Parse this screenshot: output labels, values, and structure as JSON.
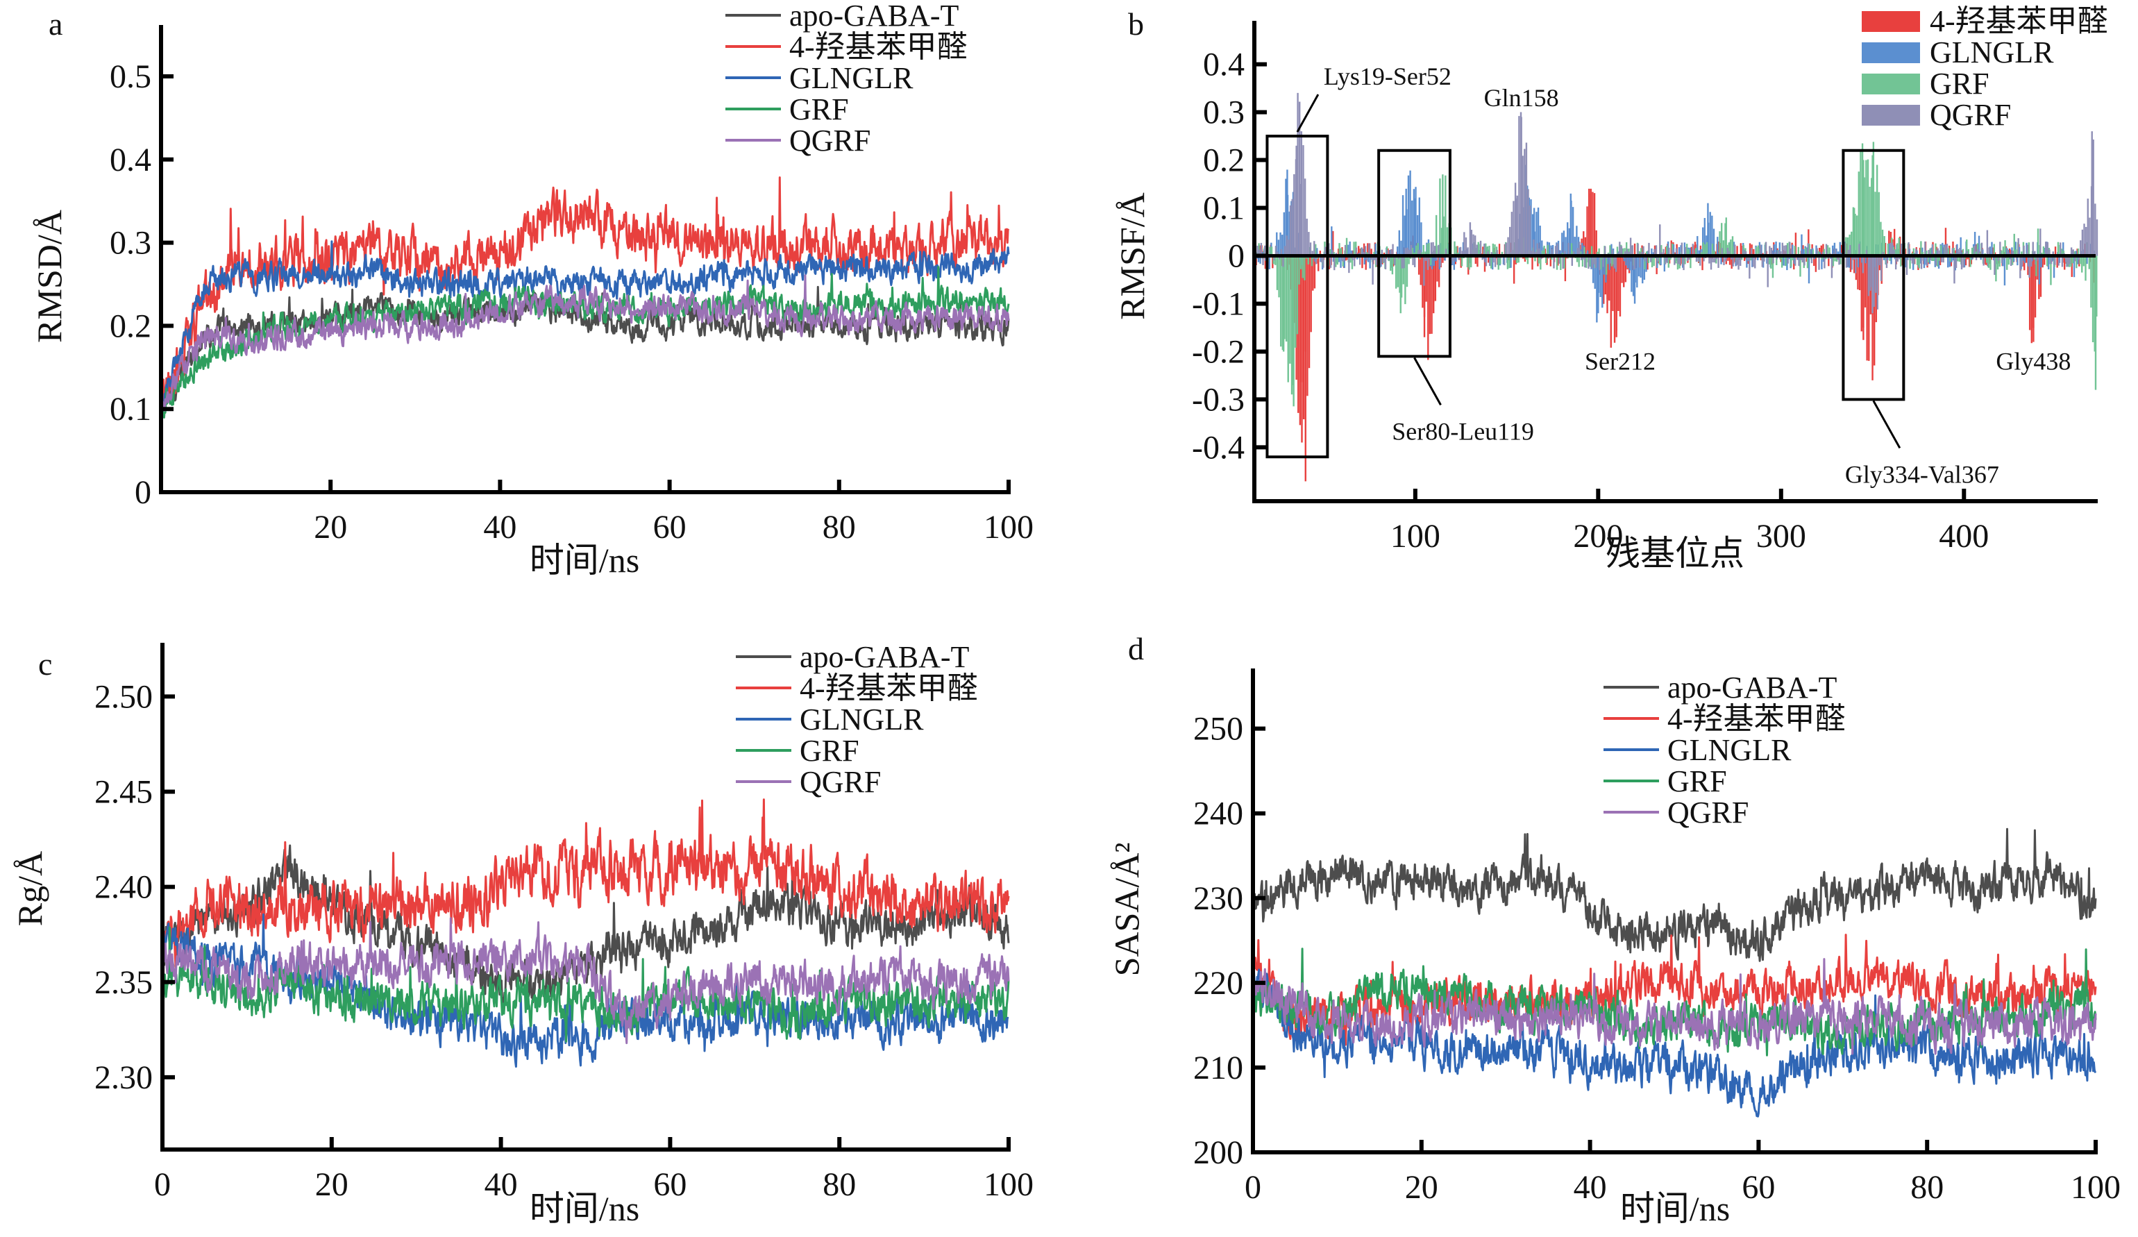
{
  "figure": {
    "panels": [
      "a",
      "b",
      "c",
      "d"
    ]
  },
  "chart_data": [
    {
      "id": "a",
      "type": "line",
      "panel_label": "a",
      "title": "",
      "xlabel": "时间/ns",
      "ylabel": "RMSD/Å",
      "xlim": [
        0,
        100
      ],
      "ylim": [
        0,
        0.52
      ],
      "xticks": [
        20,
        40,
        60,
        80,
        100
      ],
      "yticks": [
        0,
        0.1,
        0.2,
        0.3,
        0.4,
        0.5
      ],
      "ytick_labels": [
        "0",
        "0.1",
        "0.2",
        "0.3",
        "0.4",
        "0.5"
      ],
      "grid": false,
      "legend_position": "top-right",
      "x": [
        0,
        5,
        10,
        15,
        20,
        25,
        30,
        35,
        40,
        45,
        50,
        55,
        60,
        65,
        70,
        75,
        80,
        85,
        90,
        95,
        100
      ],
      "series": [
        {
          "name": "apo-GABA-T",
          "color": "#4d4d4d",
          "noise": 0.012,
          "values": [
            0.1,
            0.19,
            0.2,
            0.2,
            0.21,
            0.22,
            0.22,
            0.21,
            0.22,
            0.22,
            0.21,
            0.2,
            0.2,
            0.21,
            0.2,
            0.2,
            0.2,
            0.2,
            0.2,
            0.2,
            0.2
          ]
        },
        {
          "name": "4-羟基苯甲醛",
          "color": "#e8403e",
          "noise": 0.022,
          "values": [
            0.1,
            0.23,
            0.27,
            0.28,
            0.28,
            0.29,
            0.28,
            0.27,
            0.29,
            0.32,
            0.34,
            0.31,
            0.31,
            0.3,
            0.3,
            0.3,
            0.3,
            0.29,
            0.29,
            0.3,
            0.3
          ]
        },
        {
          "name": "GLNGLR",
          "color": "#2f66b5",
          "noise": 0.012,
          "values": [
            0.1,
            0.25,
            0.26,
            0.26,
            0.26,
            0.27,
            0.25,
            0.25,
            0.25,
            0.26,
            0.25,
            0.25,
            0.25,
            0.26,
            0.26,
            0.27,
            0.27,
            0.27,
            0.27,
            0.27,
            0.28
          ]
        },
        {
          "name": "GRF",
          "color": "#2e9e5e",
          "noise": 0.012,
          "values": [
            0.1,
            0.16,
            0.18,
            0.2,
            0.21,
            0.21,
            0.22,
            0.22,
            0.23,
            0.23,
            0.22,
            0.22,
            0.22,
            0.22,
            0.23,
            0.22,
            0.23,
            0.22,
            0.23,
            0.23,
            0.23
          ]
        },
        {
          "name": "QGRF",
          "color": "#9b72b5",
          "noise": 0.012,
          "values": [
            0.1,
            0.19,
            0.18,
            0.19,
            0.19,
            0.2,
            0.2,
            0.2,
            0.22,
            0.23,
            0.23,
            0.22,
            0.22,
            0.22,
            0.22,
            0.21,
            0.21,
            0.21,
            0.21,
            0.21,
            0.21
          ]
        }
      ]
    },
    {
      "id": "b",
      "type": "bar",
      "panel_label": "b",
      "title": "",
      "xlabel": "残基位点",
      "ylabel": "RMSF/Å",
      "xlim": [
        12,
        472
      ],
      "ylim": [
        -0.44,
        0.44
      ],
      "xticks": [
        100,
        200,
        300,
        400
      ],
      "yticks": [
        -0.4,
        -0.3,
        -0.2,
        -0.1,
        0,
        0.1,
        0.2,
        0.3,
        0.4
      ],
      "ytick_labels": [
        "-0.4",
        "-0.3",
        "-0.2",
        "-0.1",
        "0",
        "0.1",
        "0.2",
        "0.3",
        "0.4"
      ],
      "grid": false,
      "legend_position": "top-right",
      "series": [
        {
          "name": "4-羟基苯甲醛",
          "color": "#e8403e",
          "peaks": [
            [
              38,
              -0.39
            ],
            [
              40,
              -0.2
            ],
            [
              105,
              -0.17
            ],
            [
              110,
              -0.12
            ],
            [
              100,
              0.08
            ],
            [
              196,
              0.14
            ],
            [
              210,
              -0.17
            ],
            [
              205,
              -0.12
            ],
            [
              350,
              -0.26
            ],
            [
              345,
              -0.15
            ],
            [
              438,
              -0.18
            ],
            [
              360,
              0.05
            ]
          ]
        },
        {
          "name": "GLNGLR",
          "color": "#5b8fd0",
          "peaks": [
            [
              30,
              0.18
            ],
            [
              95,
              0.14
            ],
            [
              100,
              0.12
            ],
            [
              160,
              0.16
            ],
            [
              165,
              0.1
            ],
            [
              185,
              0.13
            ],
            [
              200,
              -0.12
            ],
            [
              260,
              0.11
            ],
            [
              220,
              -0.1
            ],
            [
              406,
              0.05
            ]
          ]
        },
        {
          "name": "GRF",
          "color": "#72c495",
          "peaks": [
            [
              28,
              -0.2
            ],
            [
              33,
              -0.27
            ],
            [
              115,
              0.17
            ],
            [
              92,
              -0.12
            ],
            [
              345,
              0.2
            ],
            [
              350,
              0.21
            ],
            [
              340,
              0.1
            ],
            [
              270,
              0.08
            ],
            [
              472,
              -0.28
            ]
          ]
        },
        {
          "name": "QGRF",
          "color": "#8f8fb6",
          "peaks": [
            [
              35,
              0.23
            ],
            [
              37,
              0.15
            ],
            [
              158,
              0.29
            ],
            [
              155,
              0.12
            ],
            [
              130,
              0.07
            ],
            [
              350,
              -0.12
            ],
            [
              470,
              0.26
            ]
          ]
        }
      ],
      "annotations": [
        {
          "text": "Lys19-Ser52",
          "range": [
            19,
            52
          ],
          "box_ylim": [
            -0.42,
            0.25
          ],
          "label_side": "top"
        },
        {
          "text": "Ser80-Leu119",
          "range": [
            80,
            119
          ],
          "box_ylim": [
            -0.21,
            0.22
          ],
          "label_side": "bottom"
        },
        {
          "text": "Gly334-Val367",
          "range": [
            334,
            367
          ],
          "box_ylim": [
            -0.3,
            0.22
          ],
          "label_side": "bottom"
        },
        {
          "text": "Gln158",
          "at": 158,
          "y": 0.33
        },
        {
          "text": "Ser212",
          "at": 212,
          "y": -0.22
        },
        {
          "text": "Gly438",
          "at": 438,
          "y": -0.22
        }
      ]
    },
    {
      "id": "c",
      "type": "line",
      "panel_label": "c",
      "title": "",
      "xlabel": "时间/ns",
      "ylabel": "Rg/Å",
      "xlim": [
        0,
        100
      ],
      "ylim": [
        2.285,
        2.51
      ],
      "xticks": [
        0,
        20,
        40,
        60,
        80,
        100
      ],
      "yticks": [
        2.3,
        2.35,
        2.4,
        2.45,
        2.5
      ],
      "ytick_labels": [
        "2.30",
        "2.35",
        "2.40",
        "2.45",
        "2.50"
      ],
      "grid": false,
      "legend_position": "top-right",
      "x": [
        0,
        5,
        10,
        15,
        20,
        25,
        30,
        35,
        40,
        45,
        50,
        55,
        60,
        65,
        70,
        75,
        80,
        85,
        90,
        95,
        100
      ],
      "series": [
        {
          "name": "apo-GABA-T",
          "color": "#4d4d4d",
          "noise": 0.008,
          "values": [
            2.37,
            2.38,
            2.39,
            2.41,
            2.39,
            2.38,
            2.37,
            2.36,
            2.35,
            2.35,
            2.36,
            2.37,
            2.37,
            2.38,
            2.39,
            2.39,
            2.38,
            2.38,
            2.38,
            2.39,
            2.38
          ]
        },
        {
          "name": "4-羟基苯甲醛",
          "color": "#e8403e",
          "noise": 0.011,
          "values": [
            2.37,
            2.39,
            2.39,
            2.39,
            2.39,
            2.39,
            2.39,
            2.39,
            2.4,
            2.41,
            2.41,
            2.41,
            2.41,
            2.41,
            2.41,
            2.41,
            2.4,
            2.4,
            2.39,
            2.39,
            2.39
          ]
        },
        {
          "name": "GLNGLR",
          "color": "#2f66b5",
          "noise": 0.008,
          "values": [
            2.38,
            2.36,
            2.36,
            2.35,
            2.35,
            2.34,
            2.33,
            2.33,
            2.32,
            2.32,
            2.32,
            2.33,
            2.33,
            2.33,
            2.33,
            2.33,
            2.33,
            2.33,
            2.33,
            2.33,
            2.33
          ]
        },
        {
          "name": "GRF",
          "color": "#2e9e5e",
          "noise": 0.008,
          "values": [
            2.35,
            2.35,
            2.34,
            2.35,
            2.34,
            2.34,
            2.34,
            2.34,
            2.34,
            2.34,
            2.34,
            2.33,
            2.34,
            2.34,
            2.34,
            2.33,
            2.34,
            2.34,
            2.34,
            2.34,
            2.34
          ]
        },
        {
          "name": "QGRF",
          "color": "#9b72b5",
          "noise": 0.008,
          "values": [
            2.36,
            2.36,
            2.35,
            2.36,
            2.36,
            2.36,
            2.36,
            2.36,
            2.36,
            2.36,
            2.36,
            2.33,
            2.34,
            2.35,
            2.35,
            2.35,
            2.35,
            2.35,
            2.35,
            2.35,
            2.35
          ]
        }
      ]
    },
    {
      "id": "d",
      "type": "line",
      "panel_label": "d",
      "title": "",
      "xlabel": "时间/ns",
      "ylabel": "SASA/Å²",
      "xlim": [
        0,
        100
      ],
      "ylim": [
        200,
        253
      ],
      "xticks": [
        0,
        20,
        40,
        60,
        80,
        100
      ],
      "yticks": [
        200,
        210,
        220,
        230,
        240,
        250
      ],
      "ytick_labels": [
        "200",
        "210",
        "220",
        "230",
        "240",
        "250"
      ],
      "grid": false,
      "legend_position": "top-center",
      "x": [
        0,
        5,
        10,
        15,
        20,
        25,
        30,
        35,
        40,
        45,
        50,
        55,
        60,
        65,
        70,
        75,
        80,
        85,
        90,
        95,
        100
      ],
      "series": [
        {
          "name": "apo-GABA-T",
          "color": "#4d4d4d",
          "noise": 1.8,
          "values": [
            228,
            232,
            233,
            232,
            232,
            231,
            232,
            232,
            228,
            226,
            226,
            227,
            225,
            229,
            230,
            231,
            233,
            231,
            232,
            233,
            229
          ]
        },
        {
          "name": "4-羟基苯甲醛",
          "color": "#e8403e",
          "noise": 1.8,
          "values": [
            222,
            215,
            216,
            217,
            218,
            218,
            218,
            218,
            217,
            220,
            220,
            219,
            219,
            220,
            220,
            221,
            220,
            219,
            218,
            219,
            219
          ]
        },
        {
          "name": "GLNGLR",
          "color": "#2f66b5",
          "noise": 1.8,
          "values": [
            222,
            214,
            213,
            213,
            213,
            212,
            212,
            212,
            210,
            210,
            210,
            209,
            207,
            210,
            212,
            212,
            212,
            211,
            211,
            212,
            211
          ]
        },
        {
          "name": "GRF",
          "color": "#2e9e5e",
          "noise": 1.8,
          "values": [
            218,
            217,
            216,
            219,
            219,
            218,
            217,
            217,
            217,
            215,
            215,
            215,
            215,
            215,
            214,
            215,
            215,
            216,
            216,
            217,
            218
          ]
        },
        {
          "name": "QGRF",
          "color": "#9b72b5",
          "noise": 1.8,
          "values": [
            220,
            217,
            215,
            215,
            216,
            216,
            216,
            216,
            216,
            215,
            216,
            215,
            215,
            216,
            216,
            216,
            215,
            215,
            215,
            215,
            215
          ]
        }
      ]
    }
  ]
}
